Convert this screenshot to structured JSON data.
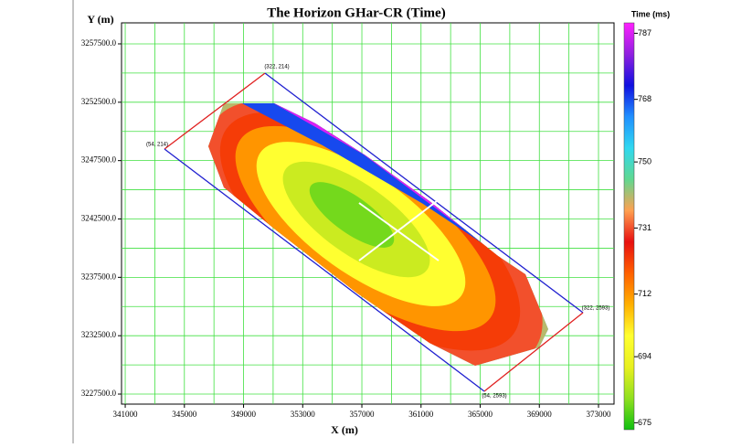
{
  "chart_data": {
    "type": "contour-map",
    "title": "The Horizon GHar-CR (Time)",
    "x_label": "X (m)",
    "y_label": "Y (m)",
    "colorbar_label": "Time (ms)",
    "xlim": [
      340750,
      374050
    ],
    "xticks": [
      341000,
      345000,
      349000,
      353000,
      357000,
      361000,
      365000,
      369000,
      373000
    ],
    "ylim": [
      3226640,
      3259300
    ],
    "yticks": [
      {
        "value": 3227500,
        "label": "3227500.0"
      },
      {
        "value": 3232500,
        "label": "3232500.0"
      },
      {
        "value": 3237500,
        "label": "3237500.0"
      },
      {
        "value": 3242500,
        "label": "3242500.0"
      },
      {
        "value": 3247500,
        "label": "3247500.0"
      },
      {
        "value": 3252500,
        "label": "3252500.0"
      },
      {
        "value": 3257500,
        "label": "3257500.0"
      }
    ],
    "clim": [
      673,
      790
    ],
    "cticks": [
      675,
      694,
      712,
      731,
      750,
      768,
      787
    ],
    "colormap": [
      "#10c010",
      "#90e020",
      "#e8f020",
      "#ffff30",
      "#ffb000",
      "#ff6000",
      "#e81010",
      "#ffa050",
      "#60d890",
      "#30d8f0",
      "#2090ff",
      "#1010e0",
      "#9020e0",
      "#ff20ff"
    ],
    "levels": [
      755,
      740,
      731,
      722,
      712,
      700,
      688,
      680,
      768,
      787
    ],
    "grid": true,
    "grid_color": "#40e040",
    "corners": [
      "(54, 214)",
      "(322, 214)",
      "(322, 2593)",
      "(54, 2593)"
    ]
  }
}
